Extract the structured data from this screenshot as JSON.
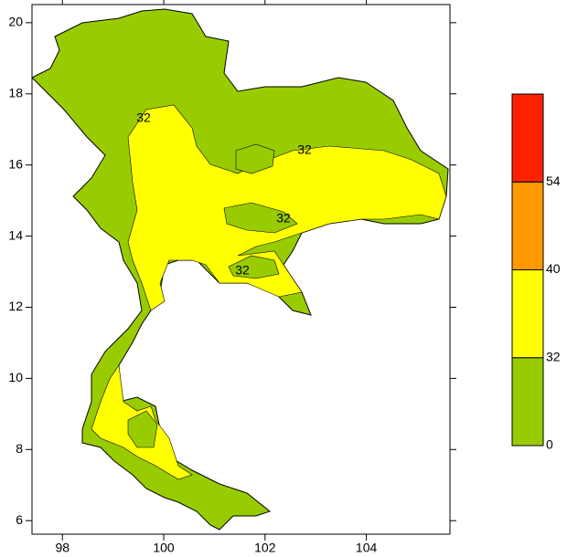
{
  "map": {
    "xlim": [
      97.4,
      105.65
    ],
    "ylim": [
      5.62,
      20.51
    ],
    "xticks": [
      98,
      100,
      102,
      104
    ],
    "yticks": [
      6,
      8,
      10,
      12,
      14,
      16,
      18,
      20
    ],
    "contour_labels": [
      "32",
      "32",
      "32",
      "32"
    ]
  },
  "colorbar": {
    "levels": [
      0,
      32,
      40,
      54
    ],
    "colors": [
      "#99cc00",
      "#ffff00",
      "#ff9900",
      "#ff2200"
    ]
  }
}
